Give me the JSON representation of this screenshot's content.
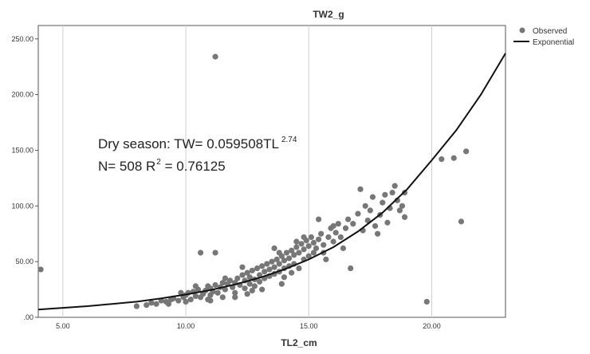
{
  "chart_data": {
    "type": "scatter",
    "title": "TW2_g",
    "xlabel": "TL2_cm",
    "ylabel": "",
    "xlim": [
      4.0,
      23.0
    ],
    "ylim": [
      0,
      262
    ],
    "x_ticks": [
      5,
      10,
      15,
      20
    ],
    "x_tick_labels": [
      "5.00",
      "10.00",
      "15.00",
      "20.00"
    ],
    "y_ticks": [
      0,
      50,
      100,
      150,
      200,
      250
    ],
    "y_tick_labels": [
      ".00",
      "50.00",
      "100.00",
      "150.00",
      "200.00",
      "250.00"
    ],
    "grid": "x-only",
    "legend_position": "top-right",
    "legend": [
      {
        "label": "Observed",
        "kind": "marker",
        "color": "#777777"
      },
      {
        "label": "Exponential",
        "kind": "line",
        "color": "#111111"
      }
    ],
    "annotation": {
      "line1_prefix": "Dry season: TW= 0.059508TL",
      "line1_exponent": "2.74",
      "line2_prefix": "N= 508  R",
      "line2_exponent": "2",
      "line2_suffix": " = 0.76125"
    },
    "fit_curve": {
      "name": "Exponential",
      "color": "#111111",
      "x": [
        4.0,
        5.0,
        6.0,
        7.0,
        8.0,
        9.0,
        10.0,
        11.0,
        12.0,
        13.0,
        14.0,
        15.0,
        16.0,
        17.0,
        18.0,
        19.0,
        20.0,
        21.0,
        22.0,
        23.0
      ],
      "y": [
        7.0,
        8.5,
        10.0,
        12.0,
        14.0,
        17.0,
        20.5,
        24.5,
        29.5,
        35.5,
        43.0,
        52.0,
        63.0,
        77.0,
        94.0,
        115.0,
        141.0,
        168.0,
        200.0,
        237.0
      ]
    },
    "series": [
      {
        "name": "Observed",
        "color": "#777777",
        "points": [
          [
            4.1,
            43
          ],
          [
            11.2,
            234
          ],
          [
            19.8,
            14
          ],
          [
            21.2,
            86
          ],
          [
            20.4,
            142
          ],
          [
            20.9,
            143
          ],
          [
            21.4,
            149
          ],
          [
            10.6,
            58
          ],
          [
            11.2,
            58
          ],
          [
            18.8,
            100
          ],
          [
            18.9,
            90
          ],
          [
            18.9,
            112
          ],
          [
            8.0,
            10
          ],
          [
            8.4,
            11
          ],
          [
            8.6,
            13
          ],
          [
            8.8,
            12
          ],
          [
            9.0,
            15
          ],
          [
            9.2,
            14
          ],
          [
            9.4,
            16
          ],
          [
            9.5,
            17
          ],
          [
            9.7,
            15
          ],
          [
            9.9,
            18
          ],
          [
            10.0,
            14
          ],
          [
            10.0,
            20
          ],
          [
            10.1,
            22
          ],
          [
            10.2,
            16
          ],
          [
            10.3,
            23
          ],
          [
            10.4,
            19
          ],
          [
            10.5,
            25
          ],
          [
            10.6,
            18
          ],
          [
            10.7,
            21
          ],
          [
            10.8,
            24
          ],
          [
            10.9,
            28
          ],
          [
            11.0,
            20
          ],
          [
            11.0,
            26
          ],
          [
            11.1,
            23
          ],
          [
            11.2,
            29
          ],
          [
            11.3,
            22
          ],
          [
            11.4,
            27
          ],
          [
            11.5,
            31
          ],
          [
            11.5,
            18
          ],
          [
            11.6,
            25
          ],
          [
            11.7,
            30
          ],
          [
            11.8,
            33
          ],
          [
            11.9,
            27
          ],
          [
            12.0,
            22
          ],
          [
            12.0,
            31
          ],
          [
            12.1,
            35
          ],
          [
            12.2,
            29
          ],
          [
            12.3,
            38
          ],
          [
            12.4,
            26
          ],
          [
            12.4,
            33
          ],
          [
            12.5,
            40
          ],
          [
            12.6,
            30
          ],
          [
            12.6,
            36
          ],
          [
            12.7,
            42
          ],
          [
            12.8,
            28
          ],
          [
            12.8,
            34
          ],
          [
            12.9,
            44
          ],
          [
            13.0,
            32
          ],
          [
            13.0,
            38
          ],
          [
            13.1,
            46
          ],
          [
            13.2,
            35
          ],
          [
            13.2,
            41
          ],
          [
            13.3,
            48
          ],
          [
            13.4,
            37
          ],
          [
            13.4,
            43
          ],
          [
            13.5,
            50
          ],
          [
            13.6,
            39
          ],
          [
            13.6,
            45
          ],
          [
            13.7,
            52
          ],
          [
            13.8,
            41
          ],
          [
            13.8,
            48
          ],
          [
            13.9,
            55
          ],
          [
            14.0,
            36
          ],
          [
            14.0,
            44
          ],
          [
            14.0,
            51
          ],
          [
            14.1,
            58
          ],
          [
            14.2,
            46
          ],
          [
            14.2,
            53
          ],
          [
            14.3,
            60
          ],
          [
            14.4,
            48
          ],
          [
            14.4,
            56
          ],
          [
            14.5,
            63
          ],
          [
            14.6,
            44
          ],
          [
            14.6,
            58
          ],
          [
            14.7,
            66
          ],
          [
            14.8,
            52
          ],
          [
            14.8,
            61
          ],
          [
            14.9,
            69
          ],
          [
            15.0,
            55
          ],
          [
            15.0,
            64
          ],
          [
            15.1,
            72
          ],
          [
            15.2,
            58
          ],
          [
            15.2,
            67
          ],
          [
            15.3,
            62
          ],
          [
            15.4,
            70
          ],
          [
            15.5,
            75
          ],
          [
            15.6,
            65
          ],
          [
            15.6,
            58
          ],
          [
            15.8,
            72
          ],
          [
            15.9,
            80
          ],
          [
            16.0,
            68
          ],
          [
            16.1,
            76
          ],
          [
            16.2,
            84
          ],
          [
            16.4,
            62
          ],
          [
            16.5,
            80
          ],
          [
            16.6,
            88
          ],
          [
            16.7,
            44
          ],
          [
            16.8,
            84
          ],
          [
            17.0,
            93
          ],
          [
            17.1,
            115
          ],
          [
            17.2,
            78
          ],
          [
            17.4,
            87
          ],
          [
            17.5,
            96
          ],
          [
            17.6,
            108
          ],
          [
            17.7,
            82
          ],
          [
            17.9,
            92
          ],
          [
            18.0,
            103
          ],
          [
            18.1,
            110
          ],
          [
            18.2,
            85
          ],
          [
            18.3,
            98
          ],
          [
            18.4,
            112
          ],
          [
            18.5,
            118
          ],
          [
            18.6,
            105
          ],
          [
            18.7,
            96
          ],
          [
            13.8,
            58
          ],
          [
            14.5,
            68
          ],
          [
            12.3,
            45
          ],
          [
            11.6,
            35
          ],
          [
            10.4,
            28
          ],
          [
            9.8,
            22
          ],
          [
            13.1,
            25
          ],
          [
            12.7,
            24
          ],
          [
            14.3,
            40
          ],
          [
            15.7,
            52
          ],
          [
            16.3,
            72
          ],
          [
            17.3,
            100
          ],
          [
            17.8,
            75
          ],
          [
            12.0,
            18
          ],
          [
            11.0,
            15
          ],
          [
            13.6,
            62
          ],
          [
            14.8,
            72
          ],
          [
            16.0,
            82
          ],
          [
            15.4,
            88
          ],
          [
            10.9,
            16
          ],
          [
            9.3,
            12
          ],
          [
            12.5,
            21
          ],
          [
            13.9,
            30
          ]
        ]
      }
    ]
  }
}
